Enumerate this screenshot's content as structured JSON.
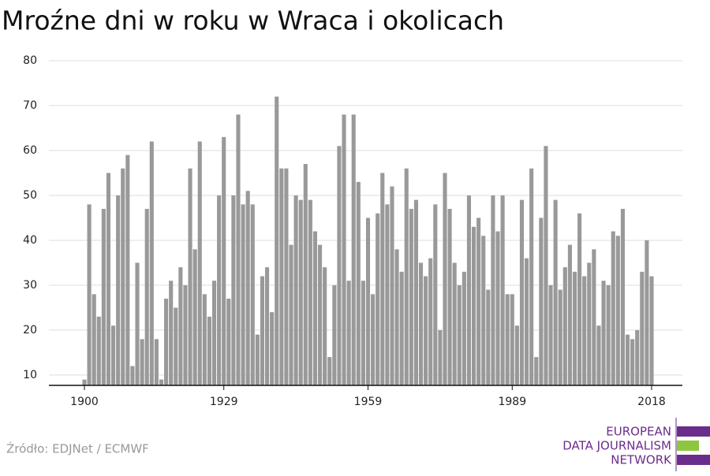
{
  "chart_data": {
    "type": "bar",
    "title": "Mroźne dni w roku w Wraca i okolicach",
    "source": "Źródło: EDJNet / ECMWF",
    "logo": [
      "EUROPEAN",
      "DATA JOURNALISM",
      "NETWORK"
    ],
    "color": "#999999",
    "x": [
      1900,
      1901,
      1902,
      1903,
      1904,
      1905,
      1906,
      1907,
      1908,
      1909,
      1910,
      1911,
      1912,
      1913,
      1914,
      1915,
      1916,
      1917,
      1918,
      1919,
      1920,
      1921,
      1922,
      1923,
      1924,
      1925,
      1926,
      1927,
      1928,
      1929,
      1930,
      1931,
      1932,
      1933,
      1934,
      1935,
      1936,
      1937,
      1938,
      1939,
      1940,
      1941,
      1942,
      1943,
      1944,
      1945,
      1946,
      1947,
      1948,
      1949,
      1950,
      1951,
      1952,
      1953,
      1954,
      1955,
      1956,
      1957,
      1958,
      1959,
      1960,
      1961,
      1962,
      1963,
      1964,
      1965,
      1966,
      1967,
      1968,
      1969,
      1970,
      1971,
      1972,
      1973,
      1974,
      1975,
      1976,
      1977,
      1978,
      1979,
      1980,
      1981,
      1982,
      1983,
      1984,
      1985,
      1986,
      1987,
      1988,
      1989,
      1990,
      1991,
      1992,
      1993,
      1994,
      1995,
      1996,
      1997,
      1998,
      1999,
      2000,
      2001,
      2002,
      2003,
      2004,
      2005,
      2006,
      2007,
      2008,
      2009,
      2010,
      2011,
      2012,
      2013,
      2014,
      2015,
      2016,
      2017,
      2018
    ],
    "values": [
      9,
      48,
      28,
      23,
      47,
      55,
      21,
      50,
      56,
      59,
      12,
      35,
      18,
      47,
      62,
      18,
      9,
      27,
      31,
      25,
      34,
      30,
      56,
      38,
      62,
      28,
      23,
      31,
      50,
      63,
      27,
      50,
      68,
      48,
      51,
      48,
      19,
      32,
      34,
      24,
      72,
      56,
      56,
      39,
      50,
      49,
      57,
      49,
      42,
      39,
      34,
      14,
      30,
      61,
      68,
      31,
      68,
      53,
      31,
      45,
      28,
      46,
      55,
      48,
      52,
      38,
      33,
      56,
      47,
      49,
      35,
      32,
      36,
      48,
      20,
      55,
      47,
      35,
      30,
      33,
      50,
      43,
      45,
      41,
      29,
      50,
      42,
      50,
      28,
      28,
      21,
      49,
      36,
      56,
      14,
      45,
      61,
      30,
      49,
      29,
      34,
      39,
      33,
      46,
      32,
      35,
      38,
      21,
      31,
      30,
      42,
      41,
      47,
      19,
      18,
      20,
      33,
      40,
      32
    ],
    "xlim": [
      1897.5,
      2020.5
    ],
    "xticks": [
      1900,
      1929,
      1959,
      1989,
      2018
    ],
    "ylim": [
      7.7,
      80
    ],
    "yticks": [
      10,
      20,
      30,
      40,
      50,
      60,
      70,
      80
    ],
    "grid": true
  }
}
